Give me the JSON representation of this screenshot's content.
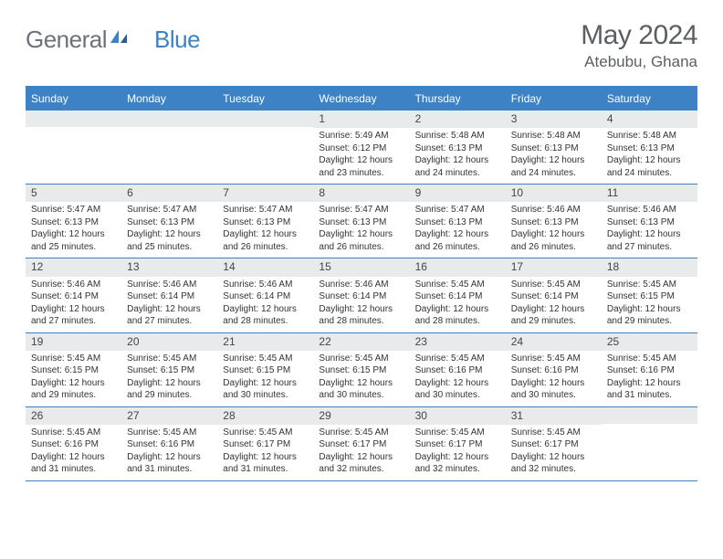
{
  "logo": {
    "text1": "General",
    "text2": "Blue"
  },
  "title": "May 2024",
  "location": "Atebubu, Ghana",
  "colors": {
    "header_bg": "#3d82c4",
    "header_text": "#ffffff",
    "daynum_bg": "#e8eaec",
    "border": "#3d82c4",
    "logo_gray": "#6c7278",
    "logo_blue": "#3d82c4",
    "title_gray": "#5a5f63",
    "body_text": "#333333",
    "page_bg": "#ffffff"
  },
  "typography": {
    "title_fontsize": 30,
    "location_fontsize": 17,
    "logo_fontsize": 26,
    "dayheader_fontsize": 12,
    "daynum_fontsize": 12,
    "body_fontsize": 10
  },
  "day_labels": [
    "Sunday",
    "Monday",
    "Tuesday",
    "Wednesday",
    "Thursday",
    "Friday",
    "Saturday"
  ],
  "weeks": [
    [
      null,
      null,
      null,
      {
        "n": "1",
        "sunrise": "5:49 AM",
        "sunset": "6:12 PM",
        "daylight": "12 hours and 23 minutes."
      },
      {
        "n": "2",
        "sunrise": "5:48 AM",
        "sunset": "6:13 PM",
        "daylight": "12 hours and 24 minutes."
      },
      {
        "n": "3",
        "sunrise": "5:48 AM",
        "sunset": "6:13 PM",
        "daylight": "12 hours and 24 minutes."
      },
      {
        "n": "4",
        "sunrise": "5:48 AM",
        "sunset": "6:13 PM",
        "daylight": "12 hours and 24 minutes."
      }
    ],
    [
      {
        "n": "5",
        "sunrise": "5:47 AM",
        "sunset": "6:13 PM",
        "daylight": "12 hours and 25 minutes."
      },
      {
        "n": "6",
        "sunrise": "5:47 AM",
        "sunset": "6:13 PM",
        "daylight": "12 hours and 25 minutes."
      },
      {
        "n": "7",
        "sunrise": "5:47 AM",
        "sunset": "6:13 PM",
        "daylight": "12 hours and 26 minutes."
      },
      {
        "n": "8",
        "sunrise": "5:47 AM",
        "sunset": "6:13 PM",
        "daylight": "12 hours and 26 minutes."
      },
      {
        "n": "9",
        "sunrise": "5:47 AM",
        "sunset": "6:13 PM",
        "daylight": "12 hours and 26 minutes."
      },
      {
        "n": "10",
        "sunrise": "5:46 AM",
        "sunset": "6:13 PM",
        "daylight": "12 hours and 26 minutes."
      },
      {
        "n": "11",
        "sunrise": "5:46 AM",
        "sunset": "6:13 PM",
        "daylight": "12 hours and 27 minutes."
      }
    ],
    [
      {
        "n": "12",
        "sunrise": "5:46 AM",
        "sunset": "6:14 PM",
        "daylight": "12 hours and 27 minutes."
      },
      {
        "n": "13",
        "sunrise": "5:46 AM",
        "sunset": "6:14 PM",
        "daylight": "12 hours and 27 minutes."
      },
      {
        "n": "14",
        "sunrise": "5:46 AM",
        "sunset": "6:14 PM",
        "daylight": "12 hours and 28 minutes."
      },
      {
        "n": "15",
        "sunrise": "5:46 AM",
        "sunset": "6:14 PM",
        "daylight": "12 hours and 28 minutes."
      },
      {
        "n": "16",
        "sunrise": "5:45 AM",
        "sunset": "6:14 PM",
        "daylight": "12 hours and 28 minutes."
      },
      {
        "n": "17",
        "sunrise": "5:45 AM",
        "sunset": "6:14 PM",
        "daylight": "12 hours and 29 minutes."
      },
      {
        "n": "18",
        "sunrise": "5:45 AM",
        "sunset": "6:15 PM",
        "daylight": "12 hours and 29 minutes."
      }
    ],
    [
      {
        "n": "19",
        "sunrise": "5:45 AM",
        "sunset": "6:15 PM",
        "daylight": "12 hours and 29 minutes."
      },
      {
        "n": "20",
        "sunrise": "5:45 AM",
        "sunset": "6:15 PM",
        "daylight": "12 hours and 29 minutes."
      },
      {
        "n": "21",
        "sunrise": "5:45 AM",
        "sunset": "6:15 PM",
        "daylight": "12 hours and 30 minutes."
      },
      {
        "n": "22",
        "sunrise": "5:45 AM",
        "sunset": "6:15 PM",
        "daylight": "12 hours and 30 minutes."
      },
      {
        "n": "23",
        "sunrise": "5:45 AM",
        "sunset": "6:16 PM",
        "daylight": "12 hours and 30 minutes."
      },
      {
        "n": "24",
        "sunrise": "5:45 AM",
        "sunset": "6:16 PM",
        "daylight": "12 hours and 30 minutes."
      },
      {
        "n": "25",
        "sunrise": "5:45 AM",
        "sunset": "6:16 PM",
        "daylight": "12 hours and 31 minutes."
      }
    ],
    [
      {
        "n": "26",
        "sunrise": "5:45 AM",
        "sunset": "6:16 PM",
        "daylight": "12 hours and 31 minutes."
      },
      {
        "n": "27",
        "sunrise": "5:45 AM",
        "sunset": "6:16 PM",
        "daylight": "12 hours and 31 minutes."
      },
      {
        "n": "28",
        "sunrise": "5:45 AM",
        "sunset": "6:17 PM",
        "daylight": "12 hours and 31 minutes."
      },
      {
        "n": "29",
        "sunrise": "5:45 AM",
        "sunset": "6:17 PM",
        "daylight": "12 hours and 32 minutes."
      },
      {
        "n": "30",
        "sunrise": "5:45 AM",
        "sunset": "6:17 PM",
        "daylight": "12 hours and 32 minutes."
      },
      {
        "n": "31",
        "sunrise": "5:45 AM",
        "sunset": "6:17 PM",
        "daylight": "12 hours and 32 minutes."
      },
      null
    ]
  ],
  "labels": {
    "sunrise": "Sunrise:",
    "sunset": "Sunset:",
    "daylight": "Daylight:"
  }
}
